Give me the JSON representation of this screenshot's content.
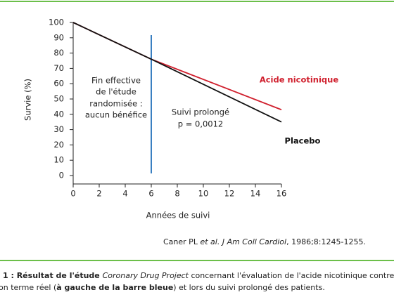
{
  "chart_data": {
    "type": "line",
    "x_label": "Années de suivi",
    "y_label": "Survie (%)",
    "x": [
      0,
      6,
      16
    ],
    "series": [
      {
        "name": "Acide nicotinique",
        "color": "#d0202e",
        "values": [
          100,
          76,
          43
        ]
      },
      {
        "name": "Placebo",
        "color": "#111111",
        "values": [
          100,
          76,
          35
        ]
      }
    ],
    "xlim": [
      0,
      16
    ],
    "ylim": [
      0,
      100
    ],
    "xticks": [
      0,
      2,
      4,
      6,
      8,
      10,
      12,
      14,
      16
    ],
    "yticks": [
      0,
      10,
      20,
      30,
      40,
      50,
      60,
      70,
      80,
      90,
      100
    ],
    "vline_x": 6,
    "vline_color": "#3a7fc1",
    "annotations": [
      {
        "lines": [
          "Fin effective",
          "de l'étude",
          "randomisée :",
          "aucun bénéfice"
        ]
      },
      {
        "lines": [
          "Suivi prolongé",
          "p = 0,0012"
        ]
      }
    ]
  },
  "citation": [
    "Caner PL ",
    "et al.",
    "",
    " J Am Coll Cardiol",
    ", 1986;8:1245-1255."
  ],
  "caption": [
    [
      "1 : Résultat de l'étude ",
      "Coronary Drug Project",
      " concernant l'évaluation de l'acide nicotinique contre place"
    ],
    [
      "on terme réel (",
      "à gauche de la barre bleue",
      ") et lors du suivi prolongé des patients."
    ]
  ]
}
